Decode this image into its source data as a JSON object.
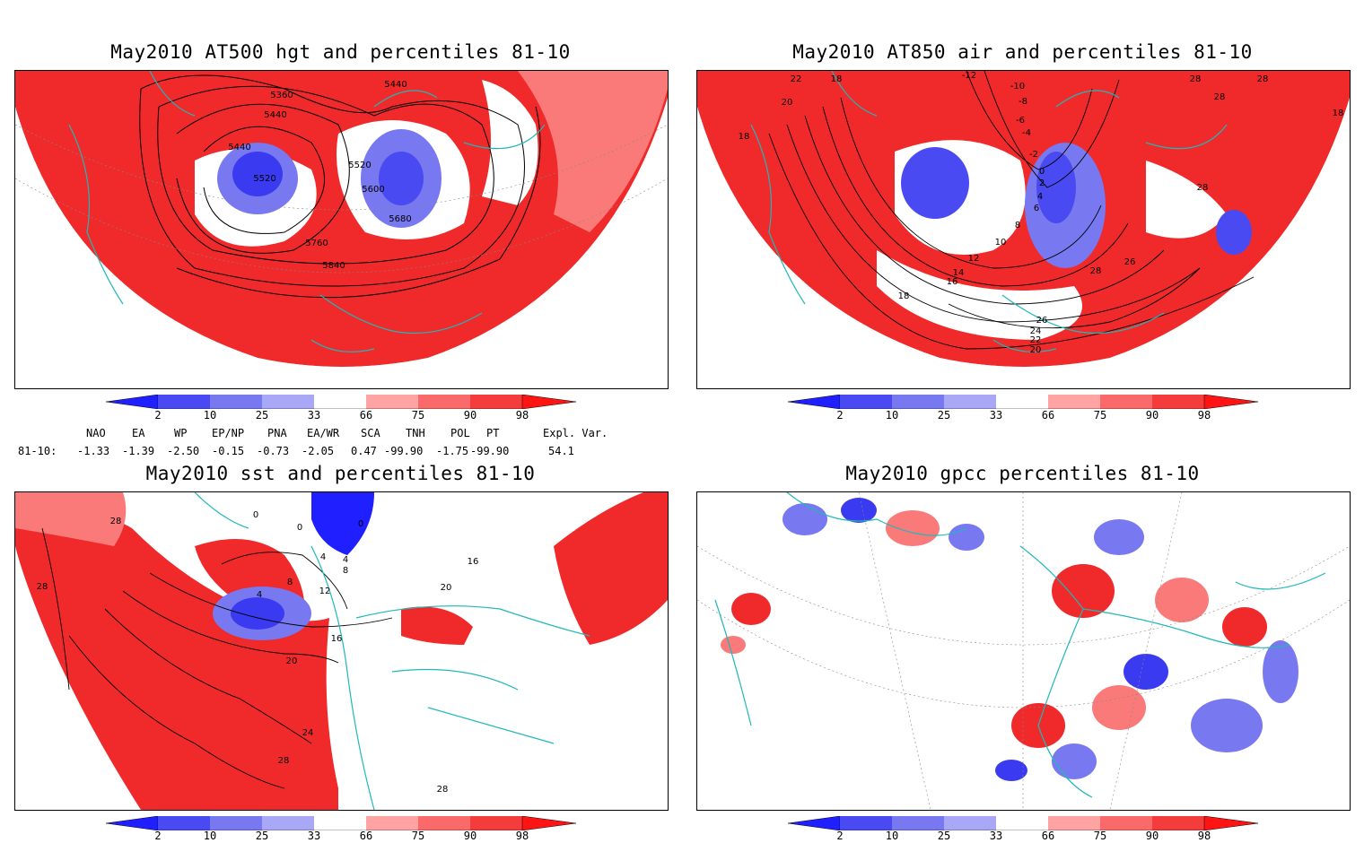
{
  "panels": [
    {
      "title": "May2010 AT500 hgt and percentiles 81-10",
      "contour_labels": [
        "5360",
        "5440",
        "5440",
        "5440",
        "5520",
        "5520",
        "5600",
        "5680",
        "5760",
        "5840"
      ]
    },
    {
      "title": "May2010 AT850 air and percentiles 81-10",
      "contour_labels": [
        "22",
        "18",
        "20",
        "18",
        "-12",
        "-10",
        "-8",
        "-6",
        "-4",
        "-2",
        "0",
        "2",
        "4",
        "6",
        "8",
        "10",
        "12",
        "14",
        "16",
        "18",
        "28",
        "28",
        "28",
        "26",
        "28",
        "26",
        "24",
        "22",
        "20",
        "28",
        "18"
      ]
    },
    {
      "title": "May2010 sst and percentiles 81-10",
      "contour_labels": [
        "28",
        "28",
        "0",
        "0",
        "0",
        "4",
        "4",
        "8",
        "4",
        "8",
        "12",
        "16",
        "16",
        "20",
        "20",
        "24",
        "28",
        "28"
      ]
    },
    {
      "title": "May2010 gpcc percentiles 81-10",
      "contour_labels": []
    }
  ],
  "colorbar": {
    "ticks": [
      "2",
      "10",
      "25",
      "33",
      "66",
      "75",
      "90",
      "98"
    ],
    "colors": {
      "dark_blue": "#1f1fff",
      "blue": "#4a4af2",
      "mid_blue": "#7878f0",
      "light_blue": "#a8a8f6",
      "light_red": "#ffa3a3",
      "mid_red": "#fa6a6a",
      "red": "#f43c3c",
      "dark_red": "#ff1414"
    }
  },
  "indices": {
    "headers": [
      "NAO",
      "EA",
      "WP",
      "EP/NP",
      "PNA",
      "EA/WR",
      "SCA",
      "TNH",
      "POL",
      "PT",
      "Expl. Var."
    ],
    "row_label": "81-10:",
    "values": [
      "-1.33",
      "-1.39",
      "-2.50",
      "-0.15",
      "-0.73",
      "-2.05",
      "0.47",
      "-99.90",
      "-1.75",
      "-99.90",
      "54.1"
    ]
  },
  "colors": {
    "coast": "#20b8b8",
    "red_fill": "#f02a2a",
    "blue_fill": "#3a3af0"
  }
}
